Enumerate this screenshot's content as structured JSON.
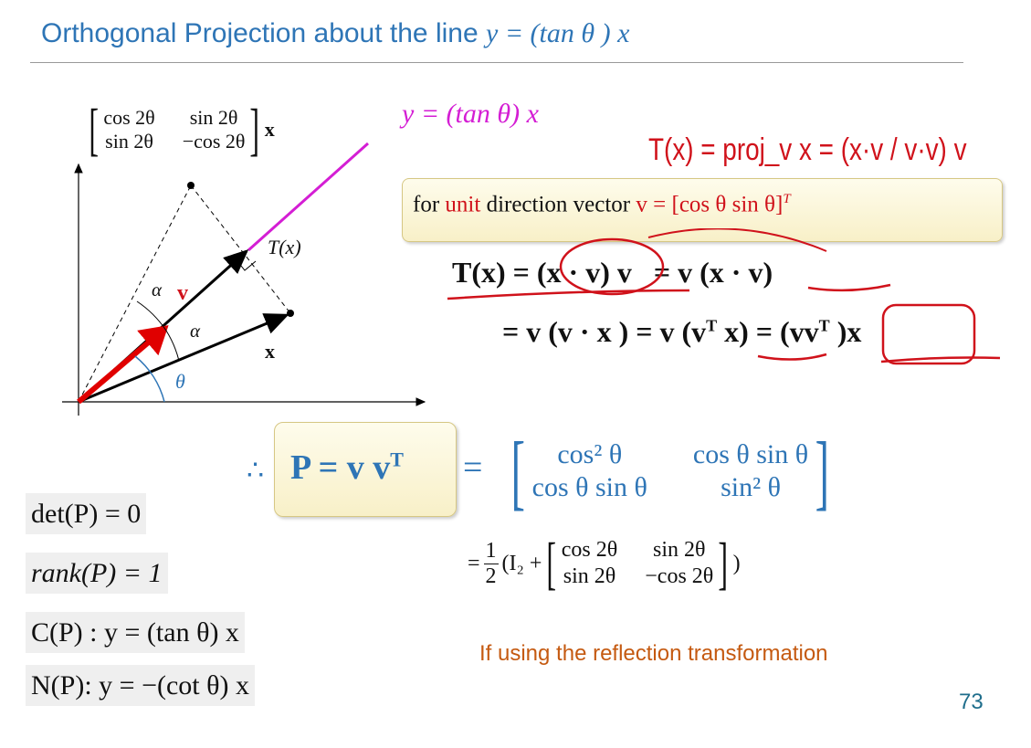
{
  "title": {
    "text": "Orthogonal Projection  about the line ",
    "math": "y = (tan θ ) x"
  },
  "diagram": {
    "reflection_matrix": {
      "cells": [
        "cos 2θ",
        "sin 2θ",
        "sin 2θ",
        "−cos 2θ"
      ],
      "suffix": "x"
    },
    "labels": {
      "tx": "T(x)",
      "v": "v",
      "alpha1": "α",
      "alpha2": "α",
      "x": "x",
      "theta": "θ"
    },
    "colors": {
      "line": "#d41ed4",
      "v": "#e00000",
      "theta_arc": "#2e75b6"
    }
  },
  "line_eq": "y = (tan θ) x",
  "handwritten_note": "T(x) = proj_v x = (x·v / v·v) v",
  "unit_box": {
    "prefix": "for ",
    "unit": "unit",
    "middle": " direction vector ",
    "vec": "v = [cos θ    sin θ]",
    "sup": "T"
  },
  "eq1": {
    "lhs": "T(x) = (x · v) v",
    "rhs": "=  v (x · v)"
  },
  "eq2": {
    "text": "= v (v · x ) = v (v",
    "sup": "T",
    "after": " x) = (vv",
    "sup2": "T",
    "end": " )x"
  },
  "p_def": {
    "therefore": "∴",
    "text": "P = v v",
    "sup": "T",
    "eq": "="
  },
  "p_matrix": {
    "cells": [
      "cos² θ",
      "cos θ sin θ",
      "cos θ sin θ",
      "sin² θ"
    ]
  },
  "half_eq": {
    "prefix": "= ",
    "num": "1",
    "den": "2",
    "i2": "(I₂ + ",
    "cells": [
      "cos 2θ",
      "sin 2θ",
      "sin 2θ",
      "−cos 2θ"
    ],
    "suffix": ")"
  },
  "properties": [
    "det(P)  =  0",
    "rank(P) = 1",
    "C(P)  : y = (tan θ) x",
    "N(P):  y = −(cot θ) x"
  ],
  "note": "If using the reflection transformation",
  "page_number": "73"
}
